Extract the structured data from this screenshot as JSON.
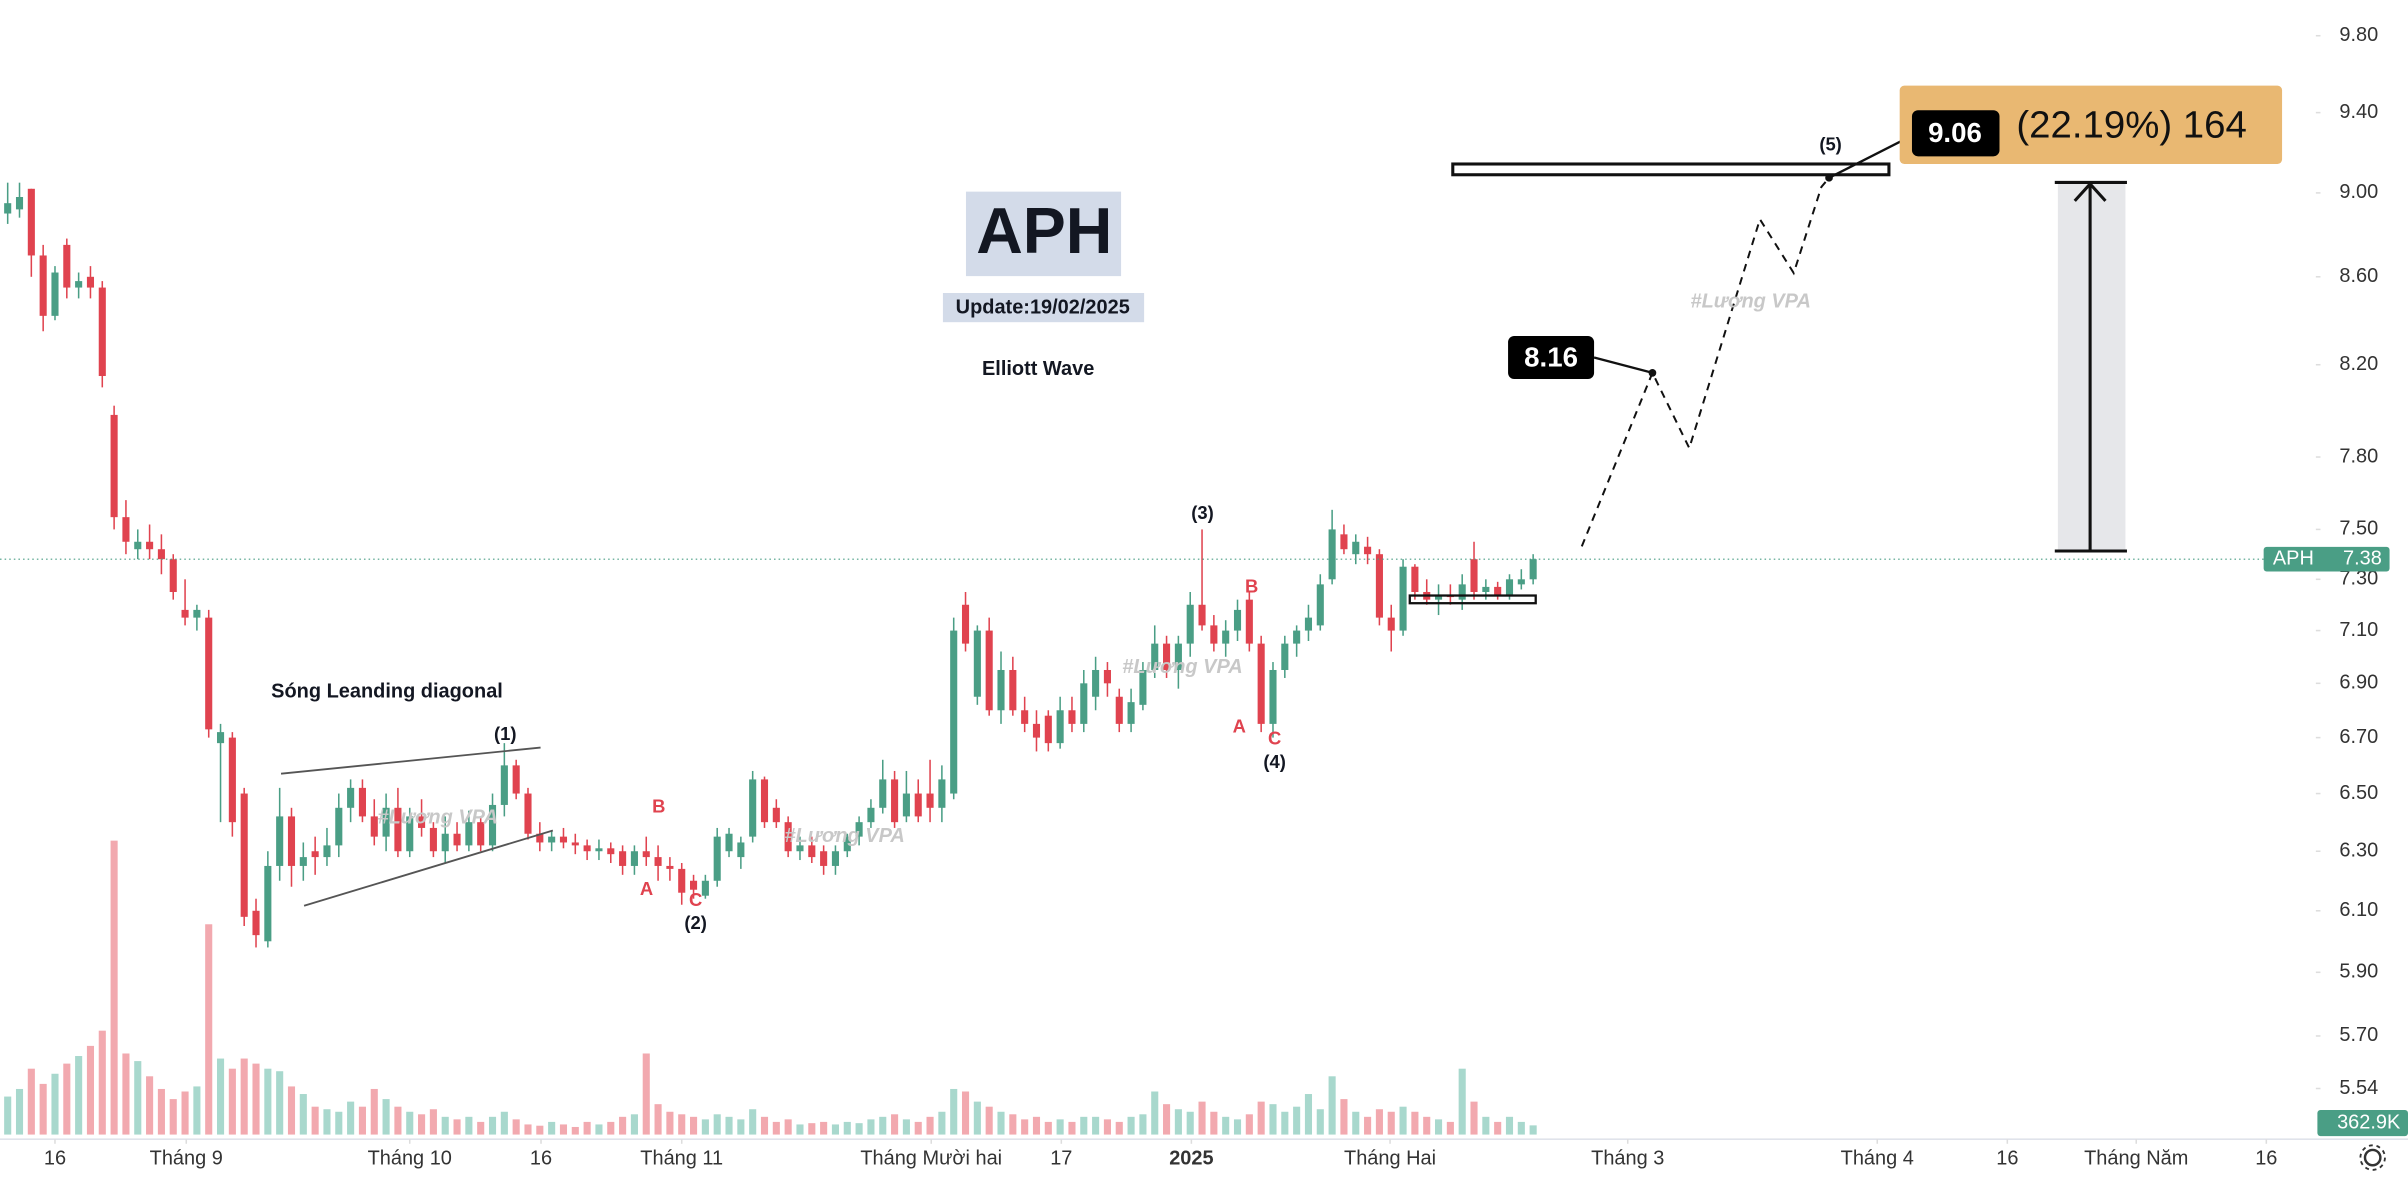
{
  "chart_data": {
    "type": "candlestick",
    "log": true,
    "grid": false,
    "up_color": "#4a9e85",
    "down_color": "#e0434f",
    "vol_up_color": "#a8d8cd",
    "vol_down_color": "#f2a9af",
    "xlim": [
      -0.65,
      194.8
    ],
    "ylim": [
      5.39,
      9.96
    ],
    "vlim": [
      0,
      12000
    ],
    "yticks": [
      {
        "value": 9.8,
        "label": "9.80"
      },
      {
        "value": 9.4,
        "label": "9.40"
      },
      {
        "value": 9.0,
        "label": "9.00"
      },
      {
        "value": 8.6,
        "label": "8.60"
      },
      {
        "value": 8.2,
        "label": "8.20"
      },
      {
        "value": 7.8,
        "label": "7.80"
      },
      {
        "value": 7.5,
        "label": "7.50"
      },
      {
        "value": 7.3,
        "label": "7.30"
      },
      {
        "value": 7.1,
        "label": "7.10"
      },
      {
        "value": 6.9,
        "label": "6.90"
      },
      {
        "value": 6.7,
        "label": "6.70"
      },
      {
        "value": 6.5,
        "label": "6.50"
      },
      {
        "value": 6.3,
        "label": "6.30"
      },
      {
        "value": 6.1,
        "label": "6.10"
      },
      {
        "value": 5.9,
        "label": "5.90"
      },
      {
        "value": 5.7,
        "label": "5.70"
      },
      {
        "value": 5.54,
        "label": "5.54"
      }
    ],
    "xticks": [
      {
        "value": 4.0,
        "label": "16"
      },
      {
        "value": 15.1,
        "label": "Tháng 9"
      },
      {
        "value": 34.0,
        "label": "Tháng 10"
      },
      {
        "value": 45.1,
        "label": "16"
      },
      {
        "value": 57.0,
        "label": "Tháng 11"
      },
      {
        "value": 78.1,
        "label": "Tháng Mười hai"
      },
      {
        "value": 89.1,
        "label": "17"
      },
      {
        "value": 100.1,
        "label": "2025"
      },
      {
        "value": 116.9,
        "label": "Tháng Hai"
      },
      {
        "value": 137.0,
        "label": "Tháng 3"
      },
      {
        "value": 158.1,
        "label": "Tháng 4"
      },
      {
        "value": 169.1,
        "label": "16"
      },
      {
        "value": 180.0,
        "label": "Tháng Năm"
      },
      {
        "value": 191.0,
        "label": "16"
      }
    ],
    "open": [
      8.9,
      8.92,
      9.02,
      8.7,
      8.42,
      8.75,
      8.55,
      8.6,
      8.55,
      7.98,
      7.55,
      7.42,
      7.45,
      7.42,
      7.38,
      7.18,
      7.15,
      7.15,
      6.68,
      6.7,
      6.5,
      6.1,
      6.0,
      6.25,
      6.42,
      6.25,
      6.3,
      6.28,
      6.32,
      6.45,
      6.52,
      6.42,
      6.35,
      6.45,
      6.3,
      6.42,
      6.38,
      6.3,
      6.36,
      6.32,
      6.4,
      6.32,
      6.46,
      6.6,
      6.5,
      6.36,
      6.33,
      6.35,
      6.33,
      6.32,
      6.3,
      6.31,
      6.3,
      6.25,
      6.3,
      6.28,
      6.25,
      6.24,
      6.2,
      6.15,
      6.2,
      6.3,
      6.28,
      6.35,
      6.55,
      6.45,
      6.4,
      6.3,
      6.32,
      6.3,
      6.25,
      6.3,
      6.35,
      6.4,
      6.45,
      6.55,
      6.42,
      6.5,
      6.5,
      6.45,
      6.5,
      7.2,
      6.85,
      7.1,
      6.8,
      6.95,
      6.8,
      6.75,
      6.78,
      6.68,
      6.8,
      6.75,
      6.85,
      6.95,
      6.85,
      6.75,
      6.82,
      6.95,
      7.05,
      6.95,
      7.05,
      7.2,
      7.12,
      7.05,
      7.1,
      7.22,
      7.05,
      6.75,
      6.95,
      7.05,
      7.1,
      7.12,
      7.3,
      7.48,
      7.4,
      7.43,
      7.4,
      7.15,
      7.1,
      7.35,
      7.25,
      7.22,
      7.24,
      7.22,
      7.38,
      7.25,
      7.27,
      7.24,
      7.28,
      7.3
    ],
    "high": [
      9.05,
      9.05,
      9.02,
      8.75,
      8.65,
      8.78,
      8.62,
      8.65,
      8.58,
      8.02,
      7.62,
      7.5,
      7.52,
      7.48,
      7.4,
      7.3,
      7.2,
      7.18,
      6.75,
      6.72,
      6.52,
      6.14,
      6.3,
      6.52,
      6.45,
      6.33,
      6.35,
      6.38,
      6.5,
      6.55,
      6.55,
      6.48,
      6.5,
      6.52,
      6.45,
      6.48,
      6.4,
      6.42,
      6.4,
      6.44,
      6.42,
      6.5,
      6.68,
      6.62,
      6.52,
      6.4,
      6.37,
      6.38,
      6.36,
      6.34,
      6.34,
      6.33,
      6.32,
      6.32,
      6.35,
      6.32,
      6.28,
      6.26,
      6.22,
      6.22,
      6.38,
      6.38,
      6.35,
      6.58,
      6.56,
      6.48,
      6.42,
      6.35,
      6.35,
      6.32,
      6.32,
      6.36,
      6.42,
      6.48,
      6.62,
      6.58,
      6.58,
      6.55,
      6.62,
      6.6,
      7.15,
      7.25,
      7.12,
      7.15,
      7.02,
      7.0,
      6.85,
      6.8,
      6.8,
      6.85,
      6.85,
      6.95,
      7.0,
      6.98,
      6.88,
      6.88,
      6.98,
      7.12,
      7.08,
      7.08,
      7.25,
      7.5,
      7.16,
      7.14,
      7.22,
      7.25,
      7.08,
      6.98,
      7.08,
      7.12,
      7.2,
      7.32,
      7.58,
      7.52,
      7.48,
      7.47,
      7.42,
      7.2,
      7.38,
      7.36,
      7.3,
      7.28,
      7.28,
      7.32,
      7.45,
      7.3,
      7.29,
      7.32,
      7.34,
      7.4
    ],
    "low": [
      8.85,
      8.88,
      8.6,
      8.35,
      8.4,
      8.5,
      8.5,
      8.5,
      8.1,
      7.5,
      7.4,
      7.38,
      7.38,
      7.32,
      7.22,
      7.12,
      7.1,
      6.7,
      6.4,
      6.35,
      6.05,
      5.98,
      5.98,
      6.2,
      6.18,
      6.2,
      6.22,
      6.25,
      6.28,
      6.4,
      6.4,
      6.32,
      6.3,
      6.28,
      6.28,
      6.35,
      6.28,
      6.26,
      6.3,
      6.3,
      6.3,
      6.3,
      6.42,
      6.48,
      6.34,
      6.3,
      6.3,
      6.31,
      6.29,
      6.27,
      6.27,
      6.26,
      6.22,
      6.22,
      6.25,
      6.2,
      6.2,
      6.12,
      6.14,
      6.14,
      6.18,
      6.28,
      6.24,
      6.33,
      6.38,
      6.38,
      6.28,
      6.27,
      6.26,
      6.22,
      6.22,
      6.28,
      6.32,
      6.38,
      6.43,
      6.38,
      6.4,
      6.4,
      6.4,
      6.4,
      6.48,
      7.02,
      6.82,
      6.78,
      6.75,
      6.78,
      6.72,
      6.65,
      6.65,
      6.66,
      6.72,
      6.72,
      6.8,
      6.85,
      6.72,
      6.72,
      6.8,
      6.92,
      6.92,
      6.88,
      7.0,
      7.1,
      7.02,
      7.0,
      7.06,
      7.02,
      6.72,
      6.7,
      6.92,
      7.0,
      7.06,
      7.1,
      7.28,
      7.4,
      7.36,
      7.36,
      7.12,
      7.02,
      7.08,
      7.22,
      7.2,
      7.16,
      7.2,
      7.18,
      7.22,
      7.22,
      7.22,
      7.22,
      7.26,
      7.28
    ],
    "close": [
      8.95,
      8.98,
      8.7,
      8.42,
      8.62,
      8.55,
      8.58,
      8.55,
      8.15,
      7.55,
      7.45,
      7.45,
      7.42,
      7.38,
      7.25,
      7.15,
      7.18,
      6.73,
      6.72,
      6.4,
      6.08,
      6.02,
      6.25,
      6.42,
      6.25,
      6.28,
      6.28,
      6.32,
      6.45,
      6.52,
      6.42,
      6.35,
      6.45,
      6.3,
      6.42,
      6.38,
      6.3,
      6.36,
      6.32,
      6.4,
      6.32,
      6.46,
      6.6,
      6.5,
      6.36,
      6.33,
      6.35,
      6.33,
      6.32,
      6.3,
      6.31,
      6.29,
      6.25,
      6.3,
      6.28,
      6.25,
      6.24,
      6.16,
      6.17,
      6.2,
      6.35,
      6.36,
      6.33,
      6.55,
      6.4,
      6.4,
      6.3,
      6.32,
      6.28,
      6.25,
      6.3,
      6.35,
      6.4,
      6.45,
      6.55,
      6.4,
      6.5,
      6.42,
      6.45,
      6.55,
      7.1,
      7.05,
      7.1,
      6.8,
      6.95,
      6.8,
      6.75,
      6.7,
      6.68,
      6.8,
      6.75,
      6.9,
      6.95,
      6.9,
      6.75,
      6.83,
      6.95,
      7.05,
      6.95,
      7.05,
      7.2,
      7.12,
      7.05,
      7.1,
      7.18,
      7.05,
      6.75,
      6.95,
      7.05,
      7.1,
      7.15,
      7.28,
      7.5,
      7.42,
      7.45,
      7.4,
      7.15,
      7.1,
      7.35,
      7.25,
      7.22,
      7.24,
      7.23,
      7.28,
      7.25,
      7.27,
      7.24,
      7.3,
      7.3,
      7.38
    ],
    "volume": [
      1500,
      1800,
      2600,
      2000,
      2400,
      2800,
      3100,
      3500,
      4100,
      11600,
      3200,
      2900,
      2300,
      1800,
      1400,
      1700,
      1900,
      8300,
      3000,
      2600,
      3000,
      2800,
      2600,
      2500,
      1900,
      1600,
      1100,
      1000,
      900,
      1300,
      1100,
      1800,
      1400,
      1100,
      900,
      800,
      1000,
      700,
      600,
      700,
      500,
      700,
      900,
      600,
      400,
      350,
      500,
      400,
      300,
      500,
      400,
      500,
      700,
      800,
      3200,
      1200,
      900,
      800,
      700,
      600,
      800,
      700,
      600,
      1000,
      700,
      500,
      600,
      400,
      450,
      500,
      400,
      500,
      450,
      600,
      700,
      800,
      600,
      500,
      700,
      900,
      1800,
      1700,
      1300,
      1100,
      900,
      800,
      600,
      700,
      500,
      600,
      500,
      700,
      700,
      600,
      500,
      700,
      800,
      1700,
      1200,
      1000,
      900,
      1300,
      900,
      700,
      600,
      800,
      1300,
      1200,
      900,
      1100,
      1600,
      1000,
      2300,
      1400,
      900,
      700,
      1000,
      900,
      1100,
      900,
      700,
      600,
      500,
      2600,
      1300,
      700,
      500,
      700,
      500,
      362.9
    ],
    "volume_label": {
      "value": 362.9,
      "label": "362.9K"
    },
    "price_tag": {
      "symbol": "APH",
      "value": 7.38,
      "label": "7.38"
    },
    "title": "APH",
    "subtitle": "Update:19/02/2025",
    "note": "Elliott Wave",
    "pattern": "Sóng Leanding diagonal",
    "watermark": "#Lương VPA",
    "waves": [
      "(1)",
      "(2)",
      "(3)",
      "(4)",
      "(5)"
    ],
    "abc": [
      "A",
      "B",
      "C"
    ],
    "target_1": "8.16",
    "target_2": "9.06",
    "gain": "(22.19%) 164"
  }
}
